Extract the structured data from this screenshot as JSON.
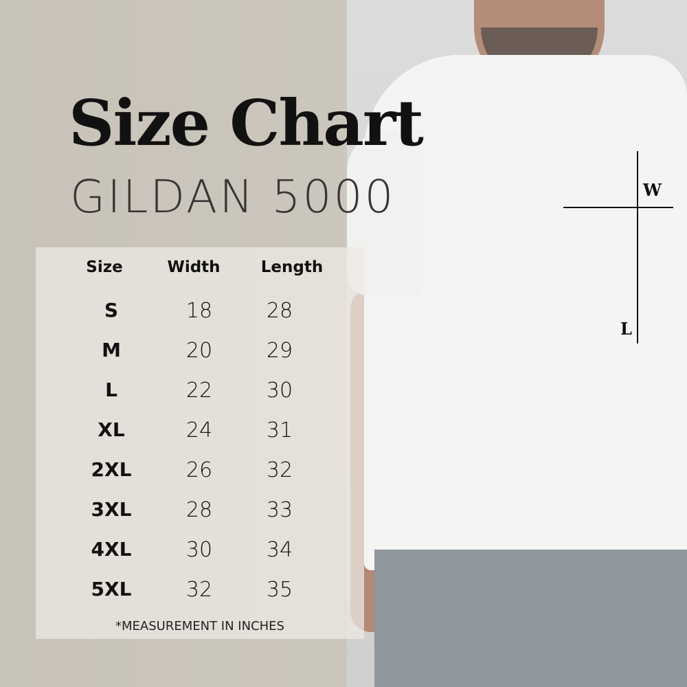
{
  "title": "Size Chart",
  "subtitle": "GILDAN 5000",
  "table": {
    "headers": [
      "Size",
      "Width",
      "Length"
    ],
    "rows": [
      [
        "S",
        "18",
        "28"
      ],
      [
        "M",
        "20",
        "29"
      ],
      [
        "L",
        "22",
        "30"
      ],
      [
        "XL",
        "24",
        "31"
      ],
      [
        "2XL",
        "26",
        "32"
      ],
      [
        "3XL",
        "28",
        "33"
      ],
      [
        "4XL",
        "30",
        "34"
      ],
      [
        "5XL",
        "32",
        "35"
      ]
    ],
    "note": "*MEASUREMENT IN INCHES"
  },
  "diagram": {
    "width_label": "W",
    "length_label": "L"
  }
}
